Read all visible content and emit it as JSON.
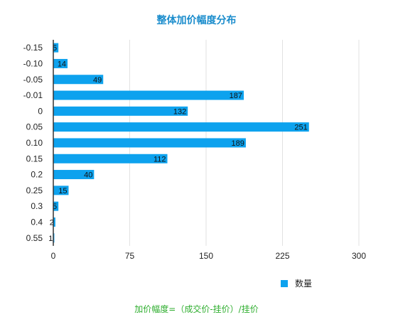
{
  "chart_data": {
    "type": "bar",
    "orientation": "horizontal",
    "title": "整体加价幅度分布",
    "categories": [
      "-0.15",
      "-0.10",
      "-0.05",
      "-0.01",
      "0",
      "0.05",
      "0.10",
      "0.15",
      "0.2",
      "0.25",
      "0.3",
      "0.4",
      "0.55"
    ],
    "series": [
      {
        "name": "数量",
        "values": [
          5,
          14,
          49,
          187,
          132,
          251,
          189,
          112,
          40,
          15,
          5,
          2,
          1
        ]
      }
    ],
    "xlim": [
      0,
      300
    ],
    "xticks": [
      "0",
      "75",
      "150",
      "225",
      "300"
    ],
    "grid": true,
    "legend": "bottom-right",
    "annotation": "加价幅度=（成交价-挂价）/挂价"
  },
  "colors": {
    "bar": "#0da2ee",
    "title": "#1a8ccc",
    "annotation": "#2fae2f",
    "grid": "#e2e2e2",
    "axis": "#333333"
  }
}
